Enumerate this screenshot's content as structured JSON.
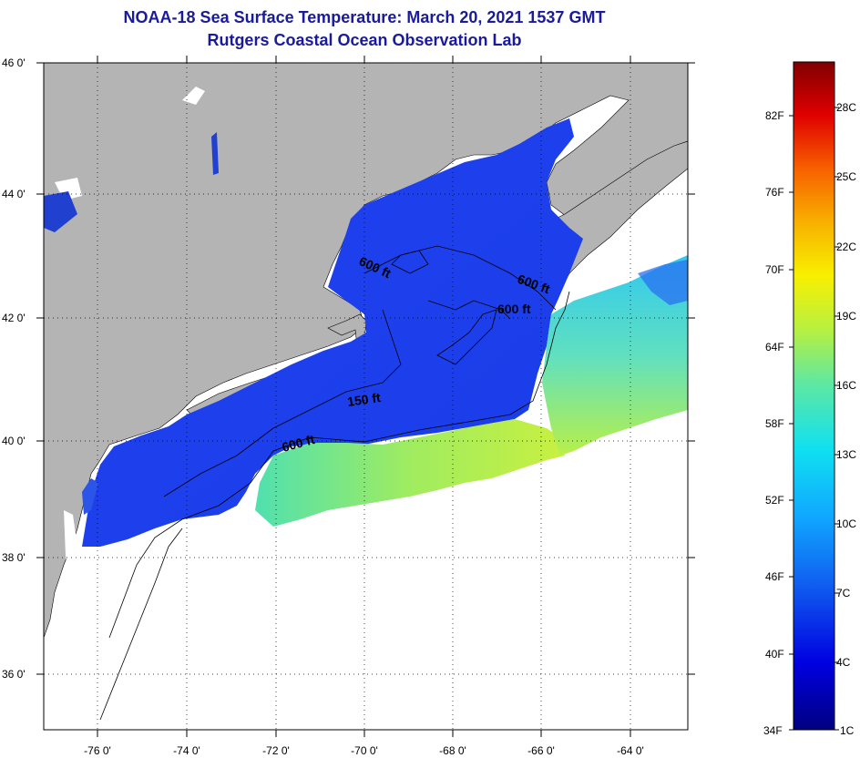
{
  "title": "NOAA-18 Sea Surface Temperature:  March 20, 2021 1537 GMT",
  "subtitle": "Rutgers Coastal Ocean Observation Lab",
  "map": {
    "lat_labels": [
      "46 0'",
      "44 0'",
      "42 0'",
      "40 0'",
      "38 0'",
      "36 0'"
    ],
    "lon_labels": [
      "-76 0'",
      "-74 0'",
      "-72 0'",
      "-70 0'",
      "-68 0'",
      "-66 0'",
      "-64 0'"
    ],
    "lon_range": [
      -77,
      -63
    ],
    "lat_range": [
      35,
      46
    ],
    "colors": {
      "land": "#b4b4b4",
      "no_data": "#ffffff",
      "grid": "dotted black"
    },
    "contour_labels": [
      "600 ft",
      "600 ft",
      "600 ft",
      "150 ft",
      "600 ft"
    ]
  },
  "colorbar": {
    "f_labels": [
      "82F",
      "76F",
      "70F",
      "64F",
      "58F",
      "52F",
      "46F",
      "40F",
      "34F"
    ],
    "c_labels": [
      "28C",
      "25C",
      "22C",
      "19C",
      "16C",
      "13C",
      "10C",
      "7C",
      "4C",
      "1C"
    ]
  }
}
